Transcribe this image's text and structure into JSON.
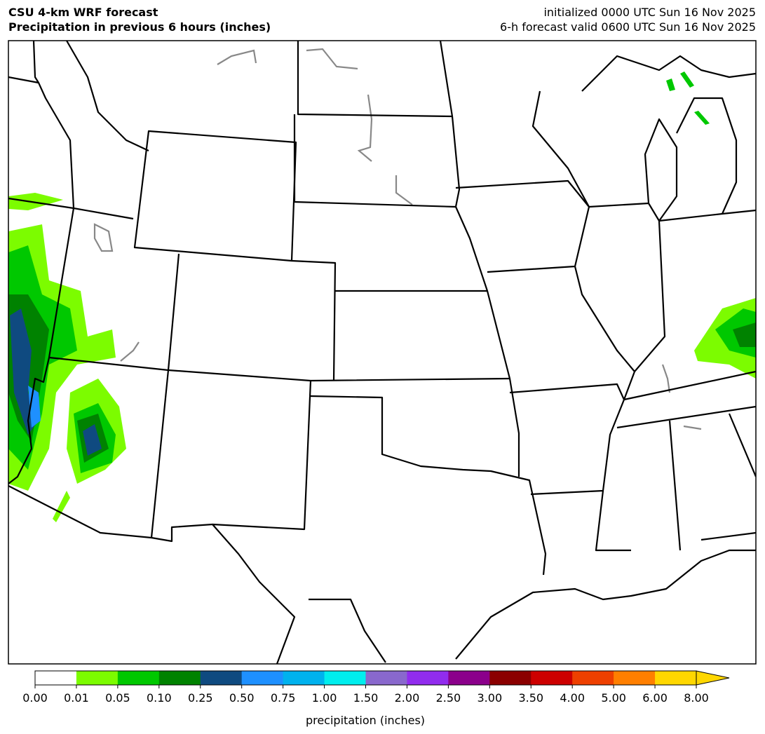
{
  "header": {
    "title_lines": [
      "CSU 4-km WRF forecast",
      "Precipitation in previous 6 hours (inches)"
    ],
    "info_lines": [
      "initialized 0000 UTC Sun 16 Nov 2025",
      "6-h forecast valid 0600 UTC Sun 16 Nov 2025"
    ]
  },
  "colorbar": {
    "levels": [
      "0.00",
      "0.01",
      "0.05",
      "0.10",
      "0.25",
      "0.50",
      "0.75",
      "1.00",
      "1.50",
      "2.00",
      "2.50",
      "3.00",
      "3.50",
      "4.00",
      "5.00",
      "6.00",
      "8.00"
    ],
    "colors": [
      "#ffffff",
      "#7cfc00",
      "#00c800",
      "#008200",
      "#0f4a80",
      "#1e90ff",
      "#00b2ee",
      "#00eeee",
      "#8968cd",
      "#912cee",
      "#8b008b",
      "#8b0000",
      "#cd0000",
      "#ee4000",
      "#ff7f00",
      "#ffd700"
    ],
    "label": "precipitation (inches)"
  }
}
